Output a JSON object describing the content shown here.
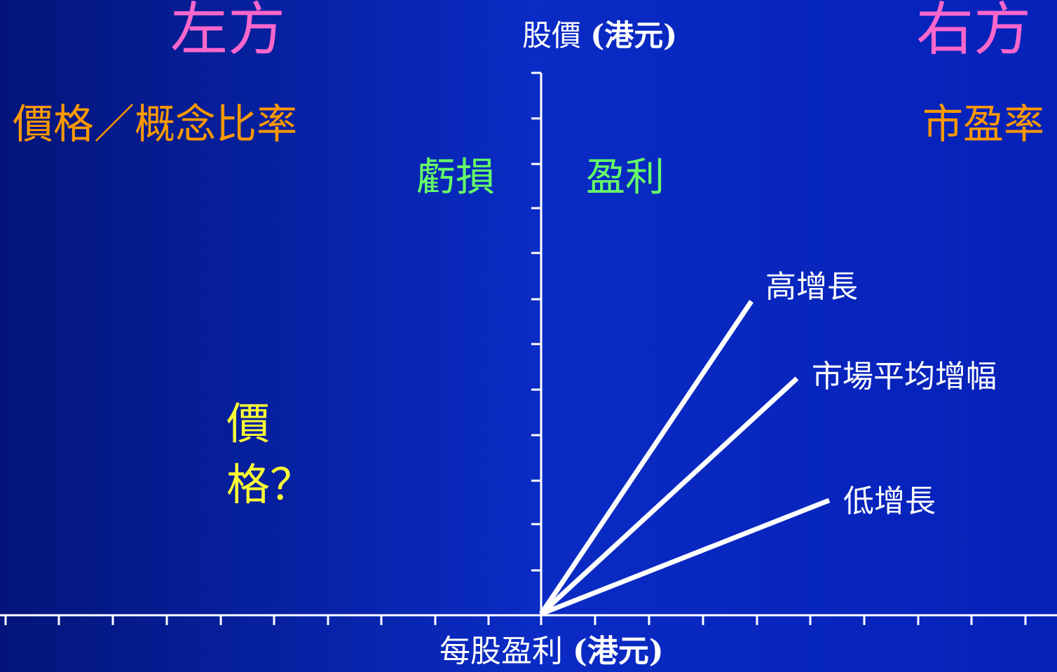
{
  "header": {
    "left_title": "左方",
    "right_title": "右方"
  },
  "axes": {
    "y_label_text": "股價",
    "y_label_unit": "(港元)",
    "x_label_text": "每股盈利",
    "x_label_unit": "(港元)"
  },
  "ratios": {
    "left": "價格／概念比率",
    "right": "市盈率"
  },
  "regions": {
    "loss": "虧損",
    "profit": "盈利"
  },
  "question": {
    "line1": "價",
    "line2": "格？"
  },
  "lines": [
    {
      "label": "高增長"
    },
    {
      "label": "市場平均增幅"
    },
    {
      "label": "低增長"
    }
  ],
  "colors": {
    "background_dark": "#03157a",
    "background_light": "#0a2bc4",
    "title": "#ff66cc",
    "ratio": "#ff9900",
    "region": "#66ff66",
    "question": "#ffff33",
    "axis": "#ffffff"
  }
}
